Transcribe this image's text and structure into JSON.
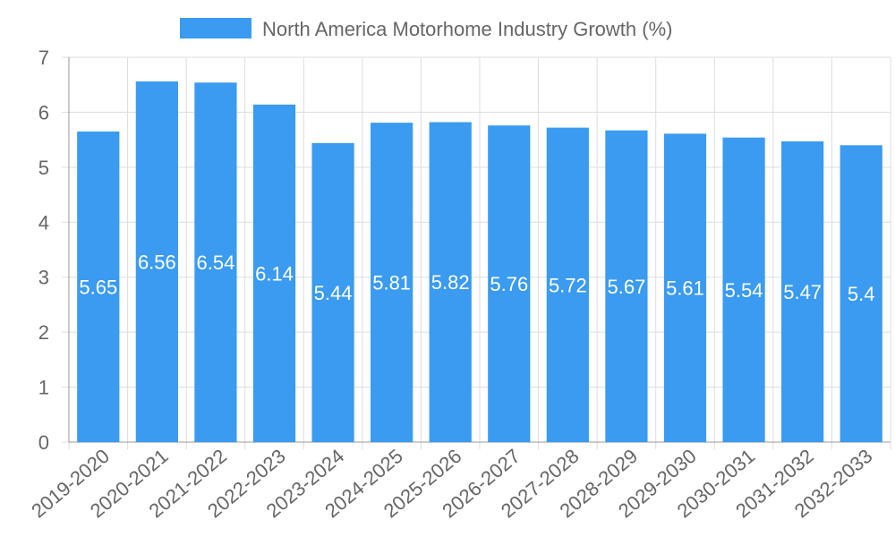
{
  "chart_data": {
    "type": "bar",
    "title": "",
    "xlabel": "",
    "ylabel": "",
    "legend": {
      "position": "top-center",
      "entries": [
        "North America Motorhome Industry Growth (%)"
      ]
    },
    "categories": [
      "2019-2020",
      "2020-2021",
      "2021-2022",
      "2022-2023",
      "2023-2024",
      "2024-2025",
      "2025-2026",
      "2026-2027",
      "2027-2028",
      "2028-2029",
      "2029-2030",
      "2030-2031",
      "2031-2032",
      "2032-2033"
    ],
    "series": [
      {
        "name": "North America Motorhome Industry Growth (%)",
        "values": [
          5.65,
          6.56,
          6.54,
          6.14,
          5.44,
          5.81,
          5.82,
          5.76,
          5.72,
          5.67,
          5.61,
          5.54,
          5.47,
          5.4
        ],
        "color": "#3a9bf0"
      }
    ],
    "data_labels": [
      "5.65",
      "6.56",
      "6.54",
      "6.14",
      "5.44",
      "5.81",
      "5.82",
      "5.76",
      "5.72",
      "5.67",
      "5.61",
      "5.54",
      "5.47",
      "5.4"
    ],
    "ylim": [
      0,
      7
    ],
    "yticks": [
      "0",
      "1",
      "2",
      "3",
      "4",
      "5",
      "6",
      "7"
    ],
    "grid": true,
    "colors": {
      "bar": "#3a9bf0",
      "grid": "#dddddd",
      "axis": "#999999",
      "text": "#666666",
      "label": "#ffffff"
    }
  }
}
